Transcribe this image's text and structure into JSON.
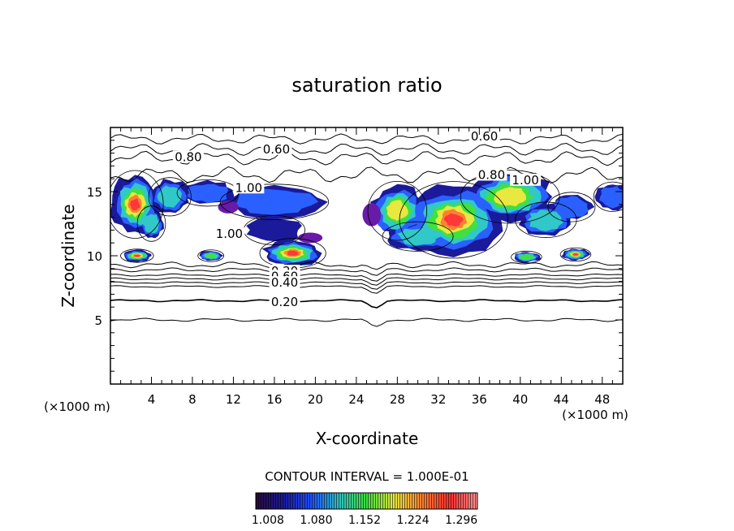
{
  "chart_data": {
    "type": "heatmap",
    "title": "saturation ratio",
    "xlabel": "X-coordinate",
    "ylabel": "Z-coordinate",
    "x_unit": "(×1000 m)",
    "z_unit": "(×1000 m)",
    "xlim": [
      0,
      50
    ],
    "ylim": [
      0,
      20
    ],
    "x_ticks": [
      4,
      8,
      12,
      16,
      20,
      24,
      28,
      32,
      36,
      40,
      44,
      48
    ],
    "y_ticks": [
      5,
      10,
      15
    ],
    "contour_interval_text": "CONTOUR INTERVAL = 1.000E-01",
    "colorbar_ticks": [
      "1.008",
      "1.080",
      "1.152",
      "1.224",
      "1.296"
    ],
    "colorbar_range": [
      0.99,
      1.32
    ],
    "colorbar_colors": [
      "#2a0a3a",
      "#1a1a9a",
      "#2050ff",
      "#30c0c0",
      "#40e040",
      "#e8e840",
      "#ff8030",
      "#ff3030",
      "#ff9090"
    ],
    "contour_labels": [
      {
        "text": "0.60",
        "x": 36.5,
        "y": 19.3
      },
      {
        "text": "0.60",
        "x": 16.2,
        "y": 18.3
      },
      {
        "text": "0.80",
        "x": 7.6,
        "y": 17.7
      },
      {
        "text": "0.80",
        "x": 37.2,
        "y": 16.3
      },
      {
        "text": "1.00",
        "x": 40.5,
        "y": 15.9
      },
      {
        "text": "1.00",
        "x": 13.5,
        "y": 15.3
      },
      {
        "text": "1.00",
        "x": 11.6,
        "y": 11.7
      },
      {
        "text": "0.20",
        "x": 17.0,
        "y": 8.8
      },
      {
        "text": "0.60",
        "x": 17.0,
        "y": 8.4
      },
      {
        "text": "0.40",
        "x": 17.0,
        "y": 7.9
      },
      {
        "text": "0.20",
        "x": 17.0,
        "y": 6.4
      }
    ]
  }
}
